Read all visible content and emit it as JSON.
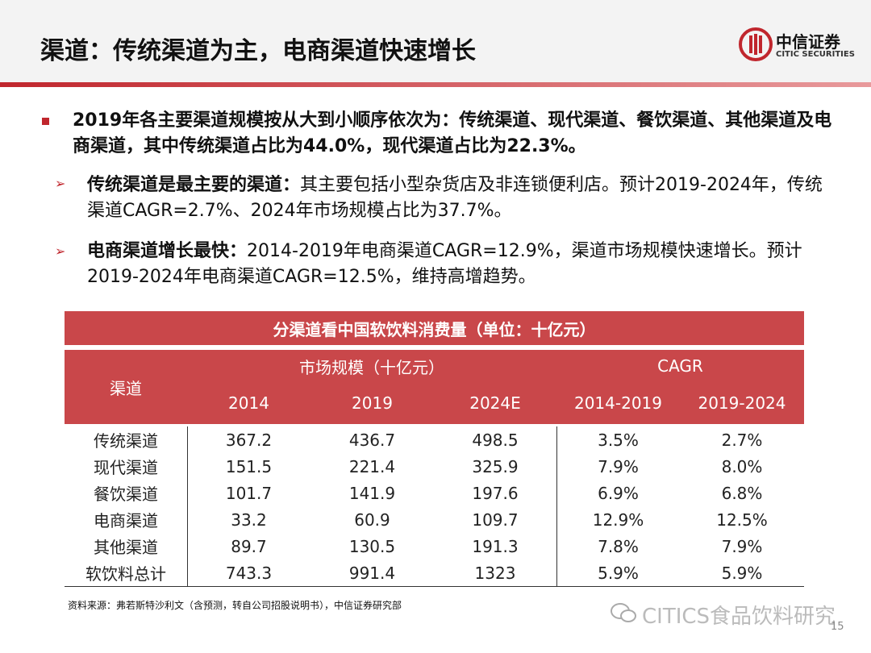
{
  "header": {
    "title": "渠道：传统渠道为主，电商渠道快速增长",
    "logo_cn": "中信证券",
    "logo_en": "CITIC SECURITIES"
  },
  "bullet": {
    "text": "2019年各主要渠道规模按从大到小顺序依次为：传统渠道、现代渠道、餐饮渠道、其他渠道及电商渠道，其中传统渠道占比为44.0%，现代渠道占比为22.3%。"
  },
  "sub_bullets": [
    {
      "lead": "传统渠道是最主要的渠道：",
      "text": "其主要包括小型杂货店及非连锁便利店。预计2019-2024年，传统渠道CAGR=2.7%、2024年市场规模占比为37.7%。"
    },
    {
      "lead": "电商渠道增长最快：",
      "text": "2014-2019年电商渠道CAGR=12.9%，渠道市场规模快速增长。预计2019-2024年电商渠道CAGR=12.5%，维持高增趋势。"
    }
  ],
  "table": {
    "title": "分渠道看中国软饮料消费量（单位：十亿元）",
    "header": {
      "channel": "渠道",
      "group1": "市场规模（十亿元）",
      "group2": "CAGR",
      "columns": [
        "2014",
        "2019",
        "2024E",
        "2014-2019",
        "2019-2024"
      ]
    },
    "rows": [
      [
        "传统渠道",
        "367.2",
        "436.7",
        "498.5",
        "3.5%",
        "2.7%"
      ],
      [
        "现代渠道",
        "151.5",
        "221.4",
        "325.9",
        "7.9%",
        "8.0%"
      ],
      [
        "餐饮渠道",
        "101.7",
        "141.9",
        "197.6",
        "6.9%",
        "6.8%"
      ],
      [
        "电商渠道",
        "33.2",
        "60.9",
        "109.7",
        "12.9%",
        "12.5%"
      ],
      [
        "其他渠道",
        "89.7",
        "130.5",
        "191.3",
        "7.8%",
        "7.9%"
      ],
      [
        "软饮料总计",
        "743.3",
        "991.4",
        "1323",
        "5.9%",
        "5.9%"
      ]
    ]
  },
  "source": "资料来源：弗若斯特沙利文（含预测，转自公司招股说明书），中信证券研究部",
  "watermark": "CITICS食品饮料研究",
  "page_number": "15"
}
